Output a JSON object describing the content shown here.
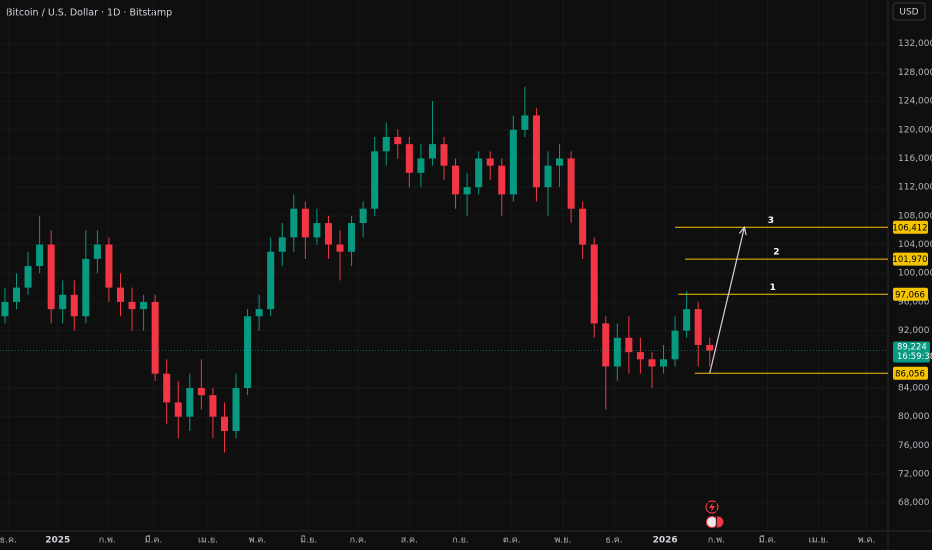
{
  "chart_data": {
    "type": "candlestick",
    "title": "Bitcoin / U.S. Dollar · 1D · Bitstamp",
    "currency_button": "USD",
    "up_color": "#089981",
    "down_color": "#f23645",
    "x": [
      3,
      10,
      17,
      24,
      31,
      38,
      45,
      52,
      59,
      66,
      73,
      80,
      87,
      94,
      101,
      108,
      115,
      122,
      129,
      136,
      143,
      150,
      157,
      164,
      171,
      178,
      185,
      192,
      199,
      206,
      213,
      220,
      227,
      234,
      241,
      248,
      255,
      262,
      269,
      276,
      283,
      290,
      297,
      304,
      311,
      318,
      325,
      332,
      339,
      346,
      353,
      360,
      367,
      374,
      381,
      388,
      395,
      402,
      409,
      416,
      423,
      430
    ],
    "open": [
      94000,
      96000,
      98000,
      101000,
      104000,
      95000,
      97000,
      94000,
      102000,
      104000,
      98000,
      96000,
      95000,
      96000,
      86000,
      82000,
      80000,
      84000,
      83000,
      80000,
      78000,
      84000,
      94000,
      95000,
      103000,
      105000,
      109000,
      105000,
      107000,
      104000,
      103000,
      107000,
      109000,
      117000,
      119000,
      118000,
      114000,
      116000,
      118000,
      115000,
      111000,
      112000,
      116000,
      115000,
      111000,
      120000,
      122000,
      112000,
      115000,
      116000,
      109000,
      104000,
      93000,
      87000,
      91000,
      89000,
      88000,
      87000,
      88000,
      92000,
      95000,
      90000
    ],
    "high": [
      98000,
      100000,
      103000,
      108000,
      106000,
      99000,
      99000,
      106000,
      106000,
      105000,
      100000,
      98000,
      97000,
      97000,
      88000,
      85000,
      86000,
      88000,
      84000,
      82000,
      86000,
      95000,
      97000,
      105000,
      107000,
      111000,
      110000,
      109000,
      108000,
      106000,
      108000,
      110000,
      119000,
      121000,
      120000,
      119000,
      118000,
      124000,
      119000,
      116000,
      114000,
      117000,
      117000,
      116000,
      122000,
      126000,
      123000,
      117000,
      118000,
      117000,
      110000,
      105000,
      94000,
      93000,
      94000,
      91000,
      89000,
      90000,
      94000,
      97500,
      96000,
      91000
    ],
    "low": [
      93000,
      95000,
      97000,
      100000,
      93000,
      93000,
      92000,
      93000,
      100000,
      96000,
      94000,
      92000,
      92000,
      85000,
      79000,
      77000,
      78000,
      81000,
      77000,
      75000,
      77000,
      83000,
      92000,
      94000,
      101000,
      103000,
      102000,
      104000,
      102000,
      99000,
      101000,
      105000,
      108000,
      115000,
      116000,
      112000,
      112000,
      115000,
      113000,
      109000,
      108000,
      111000,
      113000,
      108000,
      110000,
      119000,
      110000,
      108000,
      112000,
      107000,
      102000,
      91000,
      81000,
      85000,
      86000,
      86000,
      84000,
      86000,
      87000,
      91000,
      87000,
      87000
    ],
    "close": [
      96000,
      98000,
      101000,
      104000,
      95000,
      97000,
      94000,
      102000,
      104000,
      98000,
      96000,
      95000,
      96000,
      86000,
      82000,
      80000,
      84000,
      83000,
      80000,
      78000,
      84000,
      94000,
      95000,
      103000,
      105000,
      109000,
      105000,
      107000,
      104000,
      103000,
      107000,
      109000,
      117000,
      119000,
      118000,
      114000,
      116000,
      118000,
      115000,
      111000,
      112000,
      116000,
      115000,
      111000,
      120000,
      122000,
      112000,
      115000,
      116000,
      109000,
      104000,
      93000,
      87000,
      91000,
      89000,
      88000,
      87000,
      88000,
      92000,
      95000,
      90000,
      89224
    ],
    "xlim": [
      0,
      538
    ],
    "xticks": [
      {
        "value": 5,
        "label": "ธ.ค."
      },
      {
        "value": 35,
        "label": "2025"
      },
      {
        "value": 65,
        "label": "ก.พ."
      },
      {
        "value": 93,
        "label": "มี.ค."
      },
      {
        "value": 126,
        "label": "เม.ย."
      },
      {
        "value": 156,
        "label": "พ.ค."
      },
      {
        "value": 187,
        "label": "มิ.ย."
      },
      {
        "value": 217,
        "label": "ก.ค."
      },
      {
        "value": 248,
        "label": "ส.ค."
      },
      {
        "value": 279,
        "label": "ก.ย."
      },
      {
        "value": 310,
        "label": "ต.ค."
      },
      {
        "value": 341,
        "label": "พ.ย."
      },
      {
        "value": 372,
        "label": "ธ.ค."
      },
      {
        "value": 403,
        "label": "2026"
      },
      {
        "value": 434,
        "label": "ก.พ."
      },
      {
        "value": 465,
        "label": "มี.ค."
      },
      {
        "value": 496,
        "label": "เม.ย."
      },
      {
        "value": 525,
        "label": "พ.ค."
      }
    ],
    "ylim": [
      64200,
      138100
    ],
    "yticks": [
      {
        "value": 68000,
        "label": "68,000"
      },
      {
        "value": 72000,
        "label": "72,000"
      },
      {
        "value": 76000,
        "label": "76,000"
      },
      {
        "value": 80000,
        "label": "80,000"
      },
      {
        "value": 84000,
        "label": "84,000"
      },
      {
        "value": 92000,
        "label": "92,000"
      },
      {
        "value": 96000,
        "label": "96,000"
      },
      {
        "value": 100000,
        "label": "100,000"
      },
      {
        "value": 104000,
        "label": "104,000"
      },
      {
        "value": 108000,
        "label": "108,000"
      },
      {
        "value": 112000,
        "label": "112,000"
      },
      {
        "value": 116000,
        "label": "116,000"
      },
      {
        "value": 120000,
        "label": "120,000"
      },
      {
        "value": 124000,
        "label": "124,000"
      },
      {
        "value": 128000,
        "label": "128,000"
      },
      {
        "value": 132000,
        "label": "132,000"
      }
    ],
    "levels": [
      {
        "name": "1",
        "value": 97066,
        "value_label": "97,066",
        "start": 411
      },
      {
        "name": "2",
        "value": 101970,
        "value_label": "101,970",
        "start": 415
      },
      {
        "name": "3",
        "value": 106412,
        "value_label": "106,412",
        "start": 409
      },
      {
        "value": 86056,
        "value_label": "86,056",
        "start": 421
      }
    ],
    "level_color": "#f5c400",
    "last_price": 89224,
    "last_price_label": "89,224",
    "countdown": "16:59:38"
  }
}
